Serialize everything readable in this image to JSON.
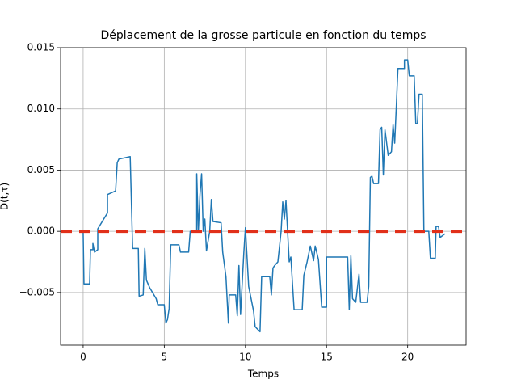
{
  "chart_data": {
    "type": "line",
    "title": "Déplacement de la grosse particule en fonction du temps",
    "xlabel": "Temps",
    "ylabel": "D(t,τ)",
    "xlim": [
      -1.39,
      23.6
    ],
    "ylim": [
      -0.0093,
      0.015
    ],
    "xticks": [
      0,
      5,
      10,
      15,
      20
    ],
    "yticks": [
      {
        "value": -0.005,
        "label": "−0.005"
      },
      {
        "value": 0,
        "label": "0.000"
      },
      {
        "value": 0.005,
        "label": "0.005"
      },
      {
        "value": 0.01,
        "label": "0.010"
      },
      {
        "value": 0.015,
        "label": "0.015"
      }
    ],
    "grid": true,
    "hlines": [
      {
        "value": 0,
        "color": "#e1301a",
        "style": "dashed"
      }
    ],
    "series": [
      {
        "color": "#1f77b4",
        "x": [
          0,
          0.05,
          0.4,
          0.45,
          0.6,
          0.6,
          0.7,
          0.9,
          0.9,
          1.5,
          1.5,
          2.0,
          2.1,
          2.2,
          2.9,
          3.05,
          3.4,
          3.45,
          3.7,
          3.8,
          3.9,
          4.1,
          4.5,
          4.6,
          5.0,
          5.1,
          5.2,
          5.3,
          5.4,
          5.9,
          6.0,
          6.5,
          6.6,
          7.0,
          7.0,
          7.1,
          7.2,
          7.3,
          7.4,
          7.5,
          7.6,
          7.8,
          7.9,
          8.0,
          8.5,
          8.6,
          8.8,
          8.95,
          9.0,
          9.4,
          9.5,
          9.6,
          9.7,
          9.9,
          10.0,
          10.2,
          10.5,
          10.6,
          10.9,
          11.0,
          11.5,
          11.6,
          11.7,
          11.8,
          12.0,
          12.2,
          12.3,
          12.4,
          12.5,
          12.6,
          12.7,
          12.8,
          13.0,
          13.5,
          13.6,
          13.8,
          14.0,
          14.2,
          14.3,
          14.5,
          14.7,
          15.0,
          15.0,
          16.3,
          16.4,
          16.5,
          16.6,
          16.8,
          17.0,
          17.1,
          17.5,
          17.6,
          17.7,
          17.8,
          17.9,
          18.2,
          18.3,
          18.4,
          18.5,
          18.6,
          18.8,
          19.0,
          19.1,
          19.2,
          19.3,
          19.4,
          19.8,
          19.8,
          20.0,
          20.1,
          20.4,
          20.5,
          20.6,
          20.7,
          20.9,
          21.0,
          21.3,
          21.4,
          21.7,
          21.75,
          21.9,
          22.0,
          22.3
        ],
        "values": [
          0,
          -0.0043,
          -0.0043,
          -0.0015,
          -0.0015,
          -0.001,
          -0.0017,
          -0.0015,
          0.0002,
          0.0015,
          0.003,
          0.0033,
          0.0056,
          0.0059,
          0.0061,
          -0.0014,
          -0.0014,
          -0.0053,
          -0.0052,
          -0.0014,
          -0.004,
          -0.0046,
          -0.0055,
          -0.006,
          -0.006,
          -0.0075,
          -0.0072,
          -0.0063,
          -0.0011,
          -0.0011,
          -0.0017,
          -0.0017,
          0,
          0,
          0.0047,
          0,
          0.003,
          0.0047,
          0,
          0.001,
          -0.0016,
          0,
          0.0026,
          0.0008,
          0.0007,
          -0.0017,
          -0.0037,
          -0.0075,
          -0.0052,
          -0.0052,
          -0.0069,
          -0.0028,
          -0.0068,
          -0.0018,
          0.0003,
          -0.0045,
          -0.0065,
          -0.0078,
          -0.0082,
          -0.0037,
          -0.0037,
          -0.0052,
          -0.003,
          -0.0028,
          -0.0025,
          0,
          0.0024,
          0.001,
          0.0025,
          0,
          -0.0025,
          -0.0021,
          -0.0064,
          -0.0064,
          -0.0036,
          -0.0025,
          -0.0012,
          -0.0024,
          -0.0012,
          -0.0023,
          -0.0062,
          -0.0062,
          -0.0021,
          -0.0021,
          -0.0064,
          -0.002,
          -0.0055,
          -0.0058,
          -0.0035,
          -0.0058,
          -0.0058,
          -0.0045,
          0.0044,
          0.0045,
          0.0039,
          0.0039,
          0.0083,
          0.0085,
          0.0046,
          0.0083,
          0.0062,
          0.0065,
          0.0087,
          0.0072,
          0.0102,
          0.0133,
          0.0133,
          0.014,
          0.014,
          0.0127,
          0.0127,
          0.0088,
          0.0088,
          0.0112,
          0.0112,
          0,
          0,
          -0.0022,
          -0.0022,
          0.0004,
          0.0004,
          -0.0005,
          -0.0002
        ]
      }
    ]
  }
}
